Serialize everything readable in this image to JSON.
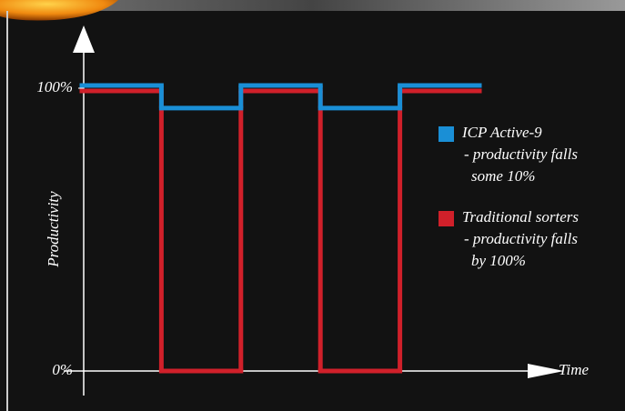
{
  "chart_data": {
    "type": "step",
    "categories": [
      null,
      null,
      null,
      null,
      null
    ],
    "series": [
      {
        "name": "ICP Active-9",
        "color": "#1a8fd6",
        "values": [
          100,
          92,
          100,
          92,
          100
        ],
        "notes": [
          "- productivity falls",
          "some 10%"
        ]
      },
      {
        "name": "Traditional sorters",
        "color": "#d0202a",
        "values": [
          100,
          0,
          100,
          0,
          100
        ],
        "notes": [
          "- productivity falls",
          "by 100%"
        ]
      }
    ],
    "ylabel": "Productivity",
    "xlabel": "Time",
    "ylim": [
      0,
      100
    ],
    "yticks": [
      {
        "value": 0,
        "label": "0%"
      },
      {
        "value": 100,
        "label": "100%"
      }
    ]
  }
}
